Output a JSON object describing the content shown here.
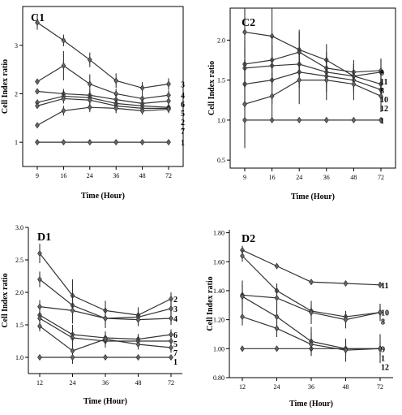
{
  "chart_data": [
    {
      "type": "line",
      "title": "C1",
      "xlabel": "Time (Hour)",
      "ylabel": "Cell Index ratio",
      "x": [
        9,
        16,
        24,
        36,
        48,
        72
      ],
      "x_tick_labels": [
        "9",
        "16",
        "24",
        "36",
        "48",
        "72"
      ],
      "x_scale": "categorical",
      "ylim": [
        0.5,
        3.8
      ],
      "y_ticks": [
        1,
        2,
        3
      ],
      "y_tick_labels": [
        "1",
        "2",
        "3"
      ],
      "y_axis_frame": "box",
      "series": [
        {
          "name": "3",
          "values": [
            3.47,
            3.1,
            2.7,
            2.27,
            2.12,
            2.2
          ],
          "err": [
            0.15,
            0.12,
            0.15,
            0.15,
            0.12,
            0.12
          ]
        },
        {
          "name": "4",
          "values": [
            2.25,
            2.58,
            2.2,
            2.0,
            1.9,
            1.97
          ],
          "err": [
            0.05,
            0.3,
            0.2,
            0.1,
            0.1,
            0.1
          ]
        },
        {
          "name": "6",
          "values": [
            2.05,
            2.0,
            1.97,
            1.88,
            1.8,
            1.85
          ],
          "err": [
            0.05,
            0.1,
            0.1,
            0.1,
            0.08,
            0.08
          ]
        },
        {
          "name": "5",
          "values": [
            1.82,
            1.95,
            1.92,
            1.8,
            1.75,
            1.72
          ],
          "err": [
            0.05,
            0.1,
            0.1,
            0.1,
            0.08,
            0.08
          ]
        },
        {
          "name": "2",
          "values": [
            1.75,
            1.9,
            1.87,
            1.75,
            1.7,
            1.7
          ],
          "err": [
            0.05,
            0.1,
            0.1,
            0.1,
            0.08,
            0.08
          ]
        },
        {
          "name": "7",
          "values": [
            1.35,
            1.65,
            1.72,
            1.7,
            1.65,
            1.68
          ],
          "err": [
            0.05,
            0.1,
            0.1,
            0.1,
            0.08,
            0.08
          ]
        },
        {
          "name": "1",
          "values": [
            1.0,
            1.0,
            1.0,
            1.0,
            1.0,
            1.0
          ],
          "err": [
            0,
            0,
            0,
            0,
            0,
            0
          ]
        }
      ],
      "label_order": [
        "3",
        "4",
        "6",
        "5",
        "2",
        "7",
        "1"
      ]
    },
    {
      "type": "line",
      "title": "C2",
      "xlabel": "Time (Hour)",
      "ylabel": "Cell Index ratio",
      "x": [
        9,
        16,
        24,
        36,
        48,
        72
      ],
      "x_tick_labels": [
        "9",
        "16",
        "24",
        "36",
        "48",
        "72"
      ],
      "x_scale": "categorical",
      "ylim": [
        0.4,
        2.4
      ],
      "y_ticks": [
        0.5,
        1.0,
        1.5,
        2.0
      ],
      "y_tick_labels": [
        "0.5",
        "1.0",
        "1.5",
        "2.0"
      ],
      "y_axis_frame": "box",
      "series": [
        {
          "name": "9",
          "values": [
            2.1,
            2.05,
            1.88,
            1.75,
            1.55,
            1.6
          ],
          "err": [
            0.3,
            0.35,
            0.25,
            0.2,
            0.15,
            0.15
          ]
        },
        {
          "name": "11",
          "values": [
            1.7,
            1.75,
            1.85,
            1.65,
            1.6,
            1.62
          ],
          "err": [
            0.3,
            0.3,
            0.25,
            0.2,
            0.15,
            0.15
          ]
        },
        {
          "name": "8",
          "values": [
            1.65,
            1.68,
            1.7,
            1.6,
            1.55,
            1.45
          ],
          "err": [
            0.25,
            0.25,
            0.2,
            0.2,
            0.15,
            0.15
          ]
        },
        {
          "name": "10",
          "values": [
            1.45,
            1.5,
            1.6,
            1.55,
            1.5,
            1.38
          ],
          "err": [
            0.3,
            0.3,
            0.2,
            0.2,
            0.15,
            0.15
          ]
        },
        {
          "name": "12",
          "values": [
            1.2,
            1.3,
            1.5,
            1.5,
            1.45,
            1.3
          ],
          "err": [
            0.55,
            0.3,
            0.3,
            0.25,
            0.2,
            0.2
          ]
        },
        {
          "name": "1",
          "values": [
            1.0,
            1.0,
            1.0,
            1.0,
            1.0,
            1.0
          ],
          "err": [
            0,
            0,
            0,
            0,
            0,
            0
          ]
        }
      ],
      "label_order": [
        "9",
        "11",
        "8",
        "10",
        "12",
        "1"
      ]
    },
    {
      "type": "line",
      "title": "D1",
      "xlabel": "Time (Hour)",
      "ylabel": "Cell Index ratio",
      "x": [
        12,
        24,
        36,
        48,
        72
      ],
      "x_tick_labels": [
        "12",
        "24",
        "36",
        "48",
        "72"
      ],
      "x_scale": "categorical",
      "ylim": [
        0.75,
        3.0
      ],
      "y_ticks": [
        1.0,
        1.5,
        2.0,
        2.5,
        3.0
      ],
      "y_tick_labels": [
        "1.0",
        "1.5",
        "2.0",
        "2.5",
        "3.0"
      ],
      "y_axis_frame": "left-bottom",
      "series": [
        {
          "name": "2",
          "values": [
            2.6,
            1.95,
            1.72,
            1.65,
            1.9
          ],
          "err": [
            0.15,
            0.25,
            0.15,
            0.12,
            0.1
          ]
        },
        {
          "name": "3",
          "values": [
            2.2,
            1.8,
            1.6,
            1.62,
            1.75
          ],
          "err": [
            0.12,
            0.2,
            0.15,
            0.1,
            0.1
          ]
        },
        {
          "name": "4",
          "values": [
            1.78,
            1.72,
            1.6,
            1.58,
            1.6
          ],
          "err": [
            0.1,
            0.2,
            0.1,
            0.1,
            0.1
          ]
        },
        {
          "name": "6",
          "values": [
            1.65,
            1.35,
            1.3,
            1.28,
            1.35
          ],
          "err": [
            0.1,
            0.15,
            0.1,
            0.08,
            0.08
          ]
        },
        {
          "name": "5",
          "values": [
            1.6,
            1.3,
            1.25,
            1.25,
            1.25
          ],
          "err": [
            0.1,
            0.15,
            0.1,
            0.08,
            0.08
          ]
        },
        {
          "name": "7",
          "values": [
            1.48,
            1.1,
            1.28,
            1.2,
            1.15
          ],
          "err": [
            0.08,
            0.2,
            0.08,
            0.08,
            0.08
          ]
        },
        {
          "name": "1",
          "values": [
            1.0,
            1.0,
            1.0,
            1.0,
            1.0
          ],
          "err": [
            0,
            0,
            0,
            0,
            0
          ]
        }
      ],
      "label_order": [
        "2",
        "3",
        "4",
        "6",
        "5",
        "7",
        "1"
      ]
    },
    {
      "type": "line",
      "title": "D2",
      "xlabel": "Time (Hour)",
      "ylabel": "Cell Index ratio",
      "x": [
        12,
        24,
        36,
        48,
        72
      ],
      "x_tick_labels": [
        "12",
        "24",
        "36",
        "48",
        "72"
      ],
      "x_scale": "categorical",
      "ylim": [
        0.8,
        1.82
      ],
      "y_ticks": [
        0.8,
        1.0,
        1.2,
        1.4,
        1.6,
        1.8
      ],
      "y_tick_labels": [
        "0.80",
        "1.00",
        "1.20",
        "1.40",
        "1.60",
        "1.80"
      ],
      "y_axis_frame": "left-bottom",
      "series": [
        {
          "name": "11",
          "values": [
            1.68,
            1.57,
            1.46,
            1.45,
            1.44
          ],
          "err": [
            0.03,
            0.01,
            0.01,
            0.01,
            0.02
          ]
        },
        {
          "name": "10",
          "values": [
            1.64,
            1.4,
            1.26,
            1.22,
            1.25
          ],
          "err": [
            0.04,
            0.04,
            0.04,
            0.04,
            0.04
          ]
        },
        {
          "name": "8",
          "values": [
            1.37,
            1.35,
            1.25,
            1.2,
            1.25
          ],
          "err": [
            0.1,
            0.1,
            0.08,
            0.06,
            0.06
          ]
        },
        {
          "name": "9",
          "values": [
            1.36,
            1.22,
            1.05,
            1.0,
            1.0
          ],
          "err": [
            0.08,
            0.1,
            0.1,
            0.05,
            0.05
          ]
        },
        {
          "name": "1",
          "values": [
            1.0,
            1.0,
            1.0,
            1.0,
            1.0
          ],
          "err": [
            0,
            0,
            0,
            0,
            0
          ]
        },
        {
          "name": "12",
          "values": [
            1.22,
            1.14,
            1.03,
            0.99,
            1.0
          ],
          "err": [
            0.06,
            0.06,
            0.08,
            0.08,
            0.1
          ]
        }
      ],
      "label_order": [
        "11",
        "10",
        "8",
        "9",
        "1",
        "12"
      ]
    }
  ],
  "colors": {
    "line": "#333333",
    "marker_fill": "#666666",
    "axis": "#000000"
  }
}
